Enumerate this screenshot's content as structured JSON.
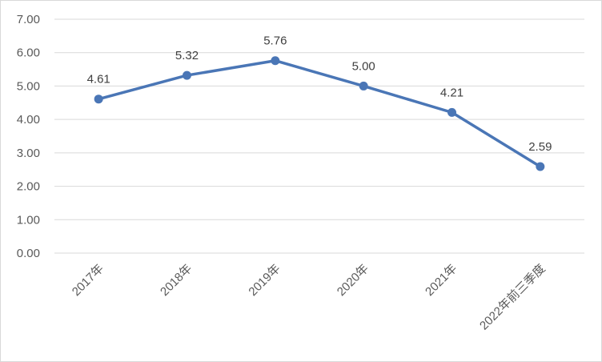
{
  "chart_data": {
    "type": "line",
    "title": "",
    "xlabel": "",
    "ylabel": "",
    "categories": [
      "2017年",
      "2018年",
      "2019年",
      "2020年",
      "2021年",
      "2022年前三季度"
    ],
    "series": [
      {
        "values": [
          4.61,
          5.32,
          5.76,
          5.0,
          4.21,
          2.59
        ],
        "data_labels": [
          "4.61",
          "5.32",
          "5.76",
          "5.00",
          "4.21",
          "2.59"
        ],
        "color": "#4a76b6"
      }
    ],
    "ylim": [
      0,
      7
    ],
    "yticks": [
      "0.00",
      "1.00",
      "2.00",
      "3.00",
      "4.00",
      "5.00",
      "6.00",
      "7.00"
    ],
    "grid": true,
    "legend": "none"
  }
}
